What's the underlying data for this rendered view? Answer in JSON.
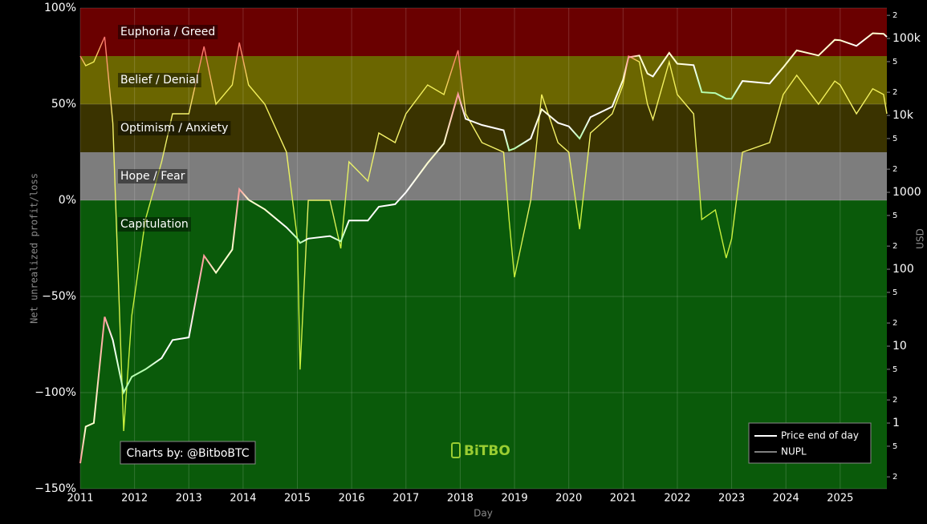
{
  "chart_data": {
    "type": "line",
    "y_title": "Net unrealized profit/loss",
    "y2_title": "USD",
    "x_title": "Day",
    "annotation": "Charts by: @BitboBTC",
    "watermark": "BiTBO",
    "y2_log": true,
    "grid": true,
    "legend_position": "bottom-right",
    "zones": [
      {
        "name": "Euphoria / Greed",
        "from": 75,
        "to": 100,
        "color": "#6a0000",
        "price_color": "#ff9a9a",
        "nupl_color": "#ff6f6f"
      },
      {
        "name": "Belief / Denial",
        "from": 50,
        "to": 75,
        "color": "#6b6600",
        "price_color": "#ffffd0",
        "nupl_color": "#f2ef5a"
      },
      {
        "name": "Optimism / Anxiety",
        "from": 25,
        "to": 50,
        "color": "#3a3300",
        "price_color": "#ffffff",
        "nupl_color": "#f5f36a"
      },
      {
        "name": "Hope / Fear",
        "from": 0,
        "to": 25,
        "color": "#7d7d7d",
        "price_color": "#ffffff",
        "nupl_color": "#e8ef6a"
      },
      {
        "name": "Capitulation",
        "from": -150,
        "to": 0,
        "color": "#0a5a0a",
        "price_color": "#b6ffb0",
        "nupl_color": "#c8f03c"
      }
    ],
    "x": [
      2011.0,
      2011.1,
      2011.25,
      2011.45,
      2011.6,
      2011.8,
      2011.95,
      2012.2,
      2012.5,
      2012.7,
      2013.0,
      2013.28,
      2013.5,
      2013.8,
      2013.93,
      2014.1,
      2014.4,
      2014.8,
      2015.0,
      2015.05,
      2015.2,
      2015.6,
      2015.8,
      2015.95,
      2016.3,
      2016.5,
      2016.8,
      2017.0,
      2017.4,
      2017.7,
      2017.96,
      2018.1,
      2018.4,
      2018.8,
      2018.9,
      2019.0,
      2019.3,
      2019.5,
      2019.8,
      2020.0,
      2020.2,
      2020.4,
      2020.8,
      2021.0,
      2021.1,
      2021.3,
      2021.45,
      2021.55,
      2021.85,
      2022.0,
      2022.3,
      2022.45,
      2022.7,
      2022.9,
      2023.0,
      2023.2,
      2023.7,
      2023.95,
      2024.2,
      2024.6,
      2024.9,
      2025.0,
      2025.3,
      2025.6,
      2025.8,
      2025.86
    ],
    "series": [
      {
        "name": "Price end of day",
        "color": "#ffffff",
        "axis": "y2",
        "values": [
          0.3,
          0.9,
          1,
          24,
          12,
          2.5,
          4,
          5,
          7,
          12,
          13,
          150,
          90,
          180,
          1100,
          800,
          600,
          350,
          250,
          220,
          250,
          270,
          230,
          430,
          430,
          650,
          700,
          1000,
          2400,
          4300,
          19000,
          9000,
          7500,
          6400,
          3500,
          3700,
          5000,
          12000,
          8000,
          7200,
          5000,
          9500,
          13000,
          29000,
          57000,
          60000,
          35000,
          32000,
          65000,
          47000,
          45000,
          20000,
          19500,
          16500,
          16500,
          28000,
          26000,
          42000,
          70000,
          60000,
          96000,
          95000,
          80000,
          117000,
          115000,
          105000
        ]
      },
      {
        "name": "NUPL",
        "color": "#808080",
        "values": [
          75,
          70,
          72,
          85,
          40,
          -120,
          -60,
          -10,
          20,
          45,
          45,
          80,
          50,
          60,
          82,
          60,
          50,
          25,
          -20,
          -88,
          0,
          0,
          -25,
          20,
          10,
          35,
          30,
          45,
          60,
          55,
          78,
          45,
          30,
          25,
          -10,
          -40,
          0,
          55,
          30,
          25,
          -15,
          35,
          45,
          60,
          75,
          72,
          50,
          42,
          72,
          55,
          45,
          -10,
          -5,
          -30,
          -20,
          25,
          30,
          55,
          65,
          50,
          62,
          60,
          45,
          58,
          55,
          45
        ]
      }
    ],
    "xlim": [
      2011,
      2025.86
    ],
    "xticks": [
      2011,
      2012,
      2013,
      2014,
      2015,
      2016,
      2017,
      2018,
      2019,
      2020,
      2021,
      2022,
      2023,
      2024,
      2025
    ],
    "ylim": [
      -150,
      100
    ],
    "yticks": [
      {
        "value": 100,
        "label": "100%"
      },
      {
        "value": 50,
        "label": "50%"
      },
      {
        "value": 0,
        "label": "0%"
      },
      {
        "value": -50,
        "label": "−50%"
      },
      {
        "value": -100,
        "label": "−100%"
      },
      {
        "value": -150,
        "label": "−150%"
      }
    ],
    "y2lim": [
      0.14,
      249000
    ],
    "y2ticks": [
      {
        "value": 200000,
        "label": "2"
      },
      {
        "value": 100000,
        "label": "100k"
      },
      {
        "value": 50000,
        "label": "5"
      },
      {
        "value": 20000,
        "label": "2"
      },
      {
        "value": 10000,
        "label": "10k"
      },
      {
        "value": 5000,
        "label": "5"
      },
      {
        "value": 2000,
        "label": "2"
      },
      1000,
      {
        "value": 500,
        "label": "5"
      },
      {
        "value": 200,
        "label": "2"
      },
      100,
      {
        "value": 50,
        "label": "5"
      },
      {
        "value": 20,
        "label": "2"
      },
      10,
      5,
      2,
      1,
      {
        "value": 0.5,
        "label": "5"
      },
      {
        "value": 0.2,
        "label": "2"
      }
    ]
  }
}
